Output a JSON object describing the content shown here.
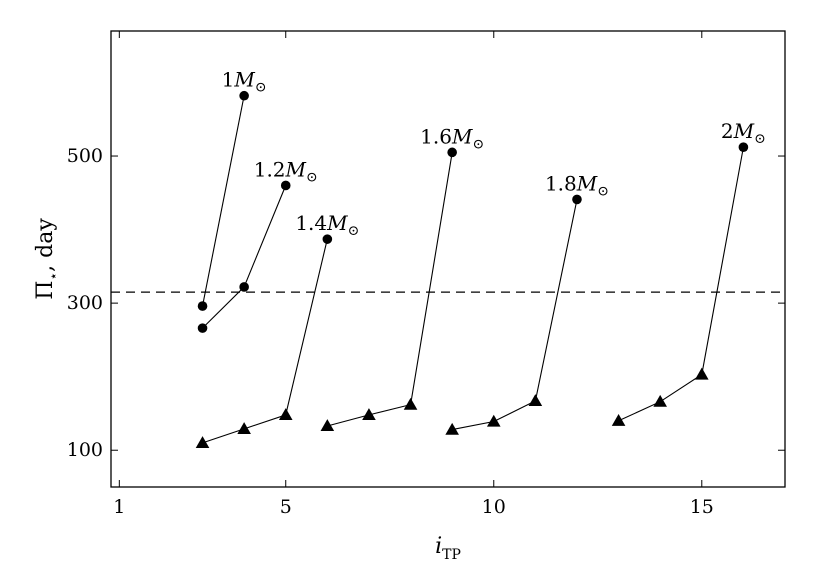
{
  "chart_data": {
    "type": "line",
    "xlabel": "i_TP",
    "ylabel": "Π⋆, day",
    "xlim": [
      0.8,
      17
    ],
    "ylim": [
      50,
      670
    ],
    "xticks": [
      1,
      5,
      10,
      15
    ],
    "yticks": [
      100,
      300,
      500
    ],
    "grid": false,
    "legend": "none",
    "reference_line": {
      "y": 315,
      "style": "dashed"
    },
    "series": [
      {
        "name": "1M⊙",
        "points": [
          [
            3,
            296
          ],
          [
            4,
            582
          ]
        ],
        "markers": [
          "circle",
          "circle"
        ]
      },
      {
        "name": "1.2M⊙",
        "points": [
          [
            3,
            266
          ],
          [
            4,
            322
          ],
          [
            5,
            460
          ]
        ],
        "markers": [
          "circle",
          "circle",
          "circle"
        ]
      },
      {
        "name": "1.4M⊙",
        "points": [
          [
            3,
            110
          ],
          [
            4,
            129
          ],
          [
            5,
            148
          ],
          [
            6,
            387
          ]
        ],
        "markers": [
          "triangle",
          "triangle",
          "triangle",
          "circle"
        ]
      },
      {
        "name": "1.6M⊙",
        "points": [
          [
            6,
            133
          ],
          [
            7,
            148
          ],
          [
            8,
            162
          ],
          [
            9,
            505
          ]
        ],
        "markers": [
          "triangle",
          "triangle",
          "triangle",
          "circle"
        ]
      },
      {
        "name": "1.8M⊙",
        "points": [
          [
            9,
            128
          ],
          [
            10,
            139
          ],
          [
            11,
            167
          ],
          [
            12,
            441
          ]
        ],
        "markers": [
          "triangle",
          "triangle",
          "triangle",
          "circle"
        ]
      },
      {
        "name": "2M⊙",
        "points": [
          [
            13,
            140
          ],
          [
            14,
            166
          ],
          [
            15,
            203
          ],
          [
            16,
            512
          ]
        ],
        "markers": [
          "triangle",
          "triangle",
          "triangle",
          "circle"
        ]
      }
    ],
    "annotations": [
      {
        "text_main": "1",
        "text_italic": "M",
        "text_sub": "⊙",
        "series": 0
      },
      {
        "text_main": "1.2",
        "text_italic": "M",
        "text_sub": "⊙",
        "series": 1
      },
      {
        "text_main": "1.4",
        "text_italic": "M",
        "text_sub": "⊙",
        "series": 2
      },
      {
        "text_main": "1.6",
        "text_italic": "M",
        "text_sub": "⊙",
        "series": 3
      },
      {
        "text_main": "1.8",
        "text_italic": "M",
        "text_sub": "⊙",
        "series": 4
      },
      {
        "text_main": "2",
        "text_italic": "M",
        "text_sub": "⊙",
        "series": 5
      }
    ],
    "axis_text": {
      "x_main": "i",
      "x_sub": "TP",
      "y_main": "Π",
      "y_sub": "⋆",
      "y_rest": ", day"
    }
  }
}
